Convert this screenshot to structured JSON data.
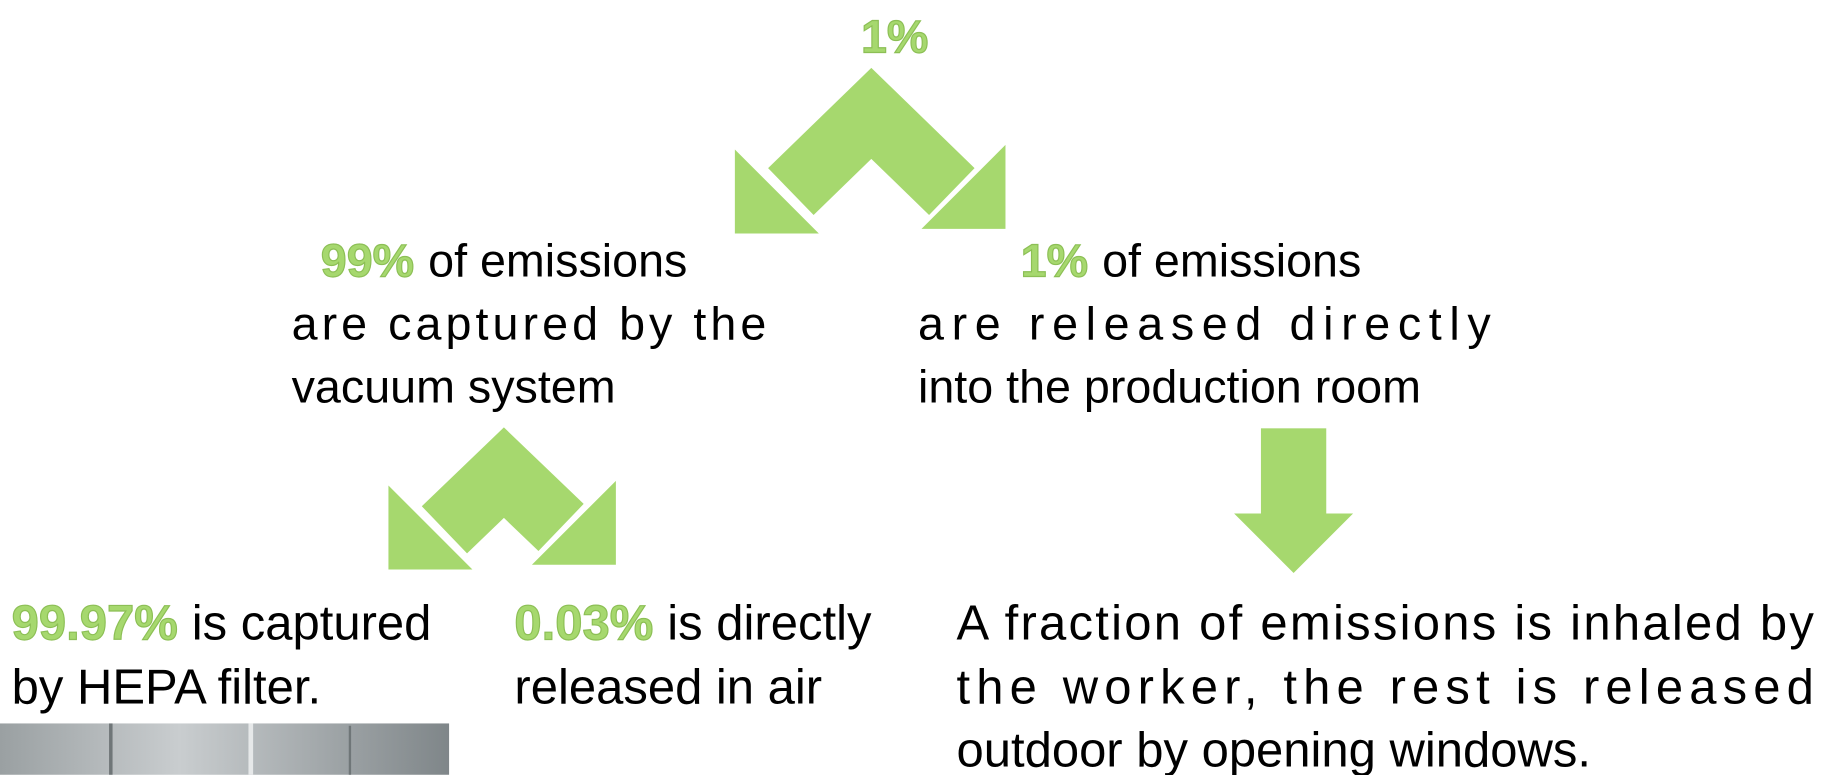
{
  "top": {
    "label": "1%"
  },
  "nodes": [
    {
      "highlight": "99%",
      "lines": [
        "of emissions",
        "are captured by the",
        "vacuum system"
      ]
    },
    {
      "highlight": "1%",
      "lines": [
        "of emissions",
        "are released directly",
        "into the production room"
      ]
    },
    {
      "highlight": "99.97%",
      "lines": [
        "is captured",
        "by HEPA filter."
      ]
    },
    {
      "highlight": "0.03%",
      "lines": [
        "is directly",
        "released in air"
      ]
    },
    {
      "lines": [
        "A fraction of emissions is inhaled by",
        "the worker, the rest is released",
        "outdoor by opening windows."
      ]
    }
  ]
}
